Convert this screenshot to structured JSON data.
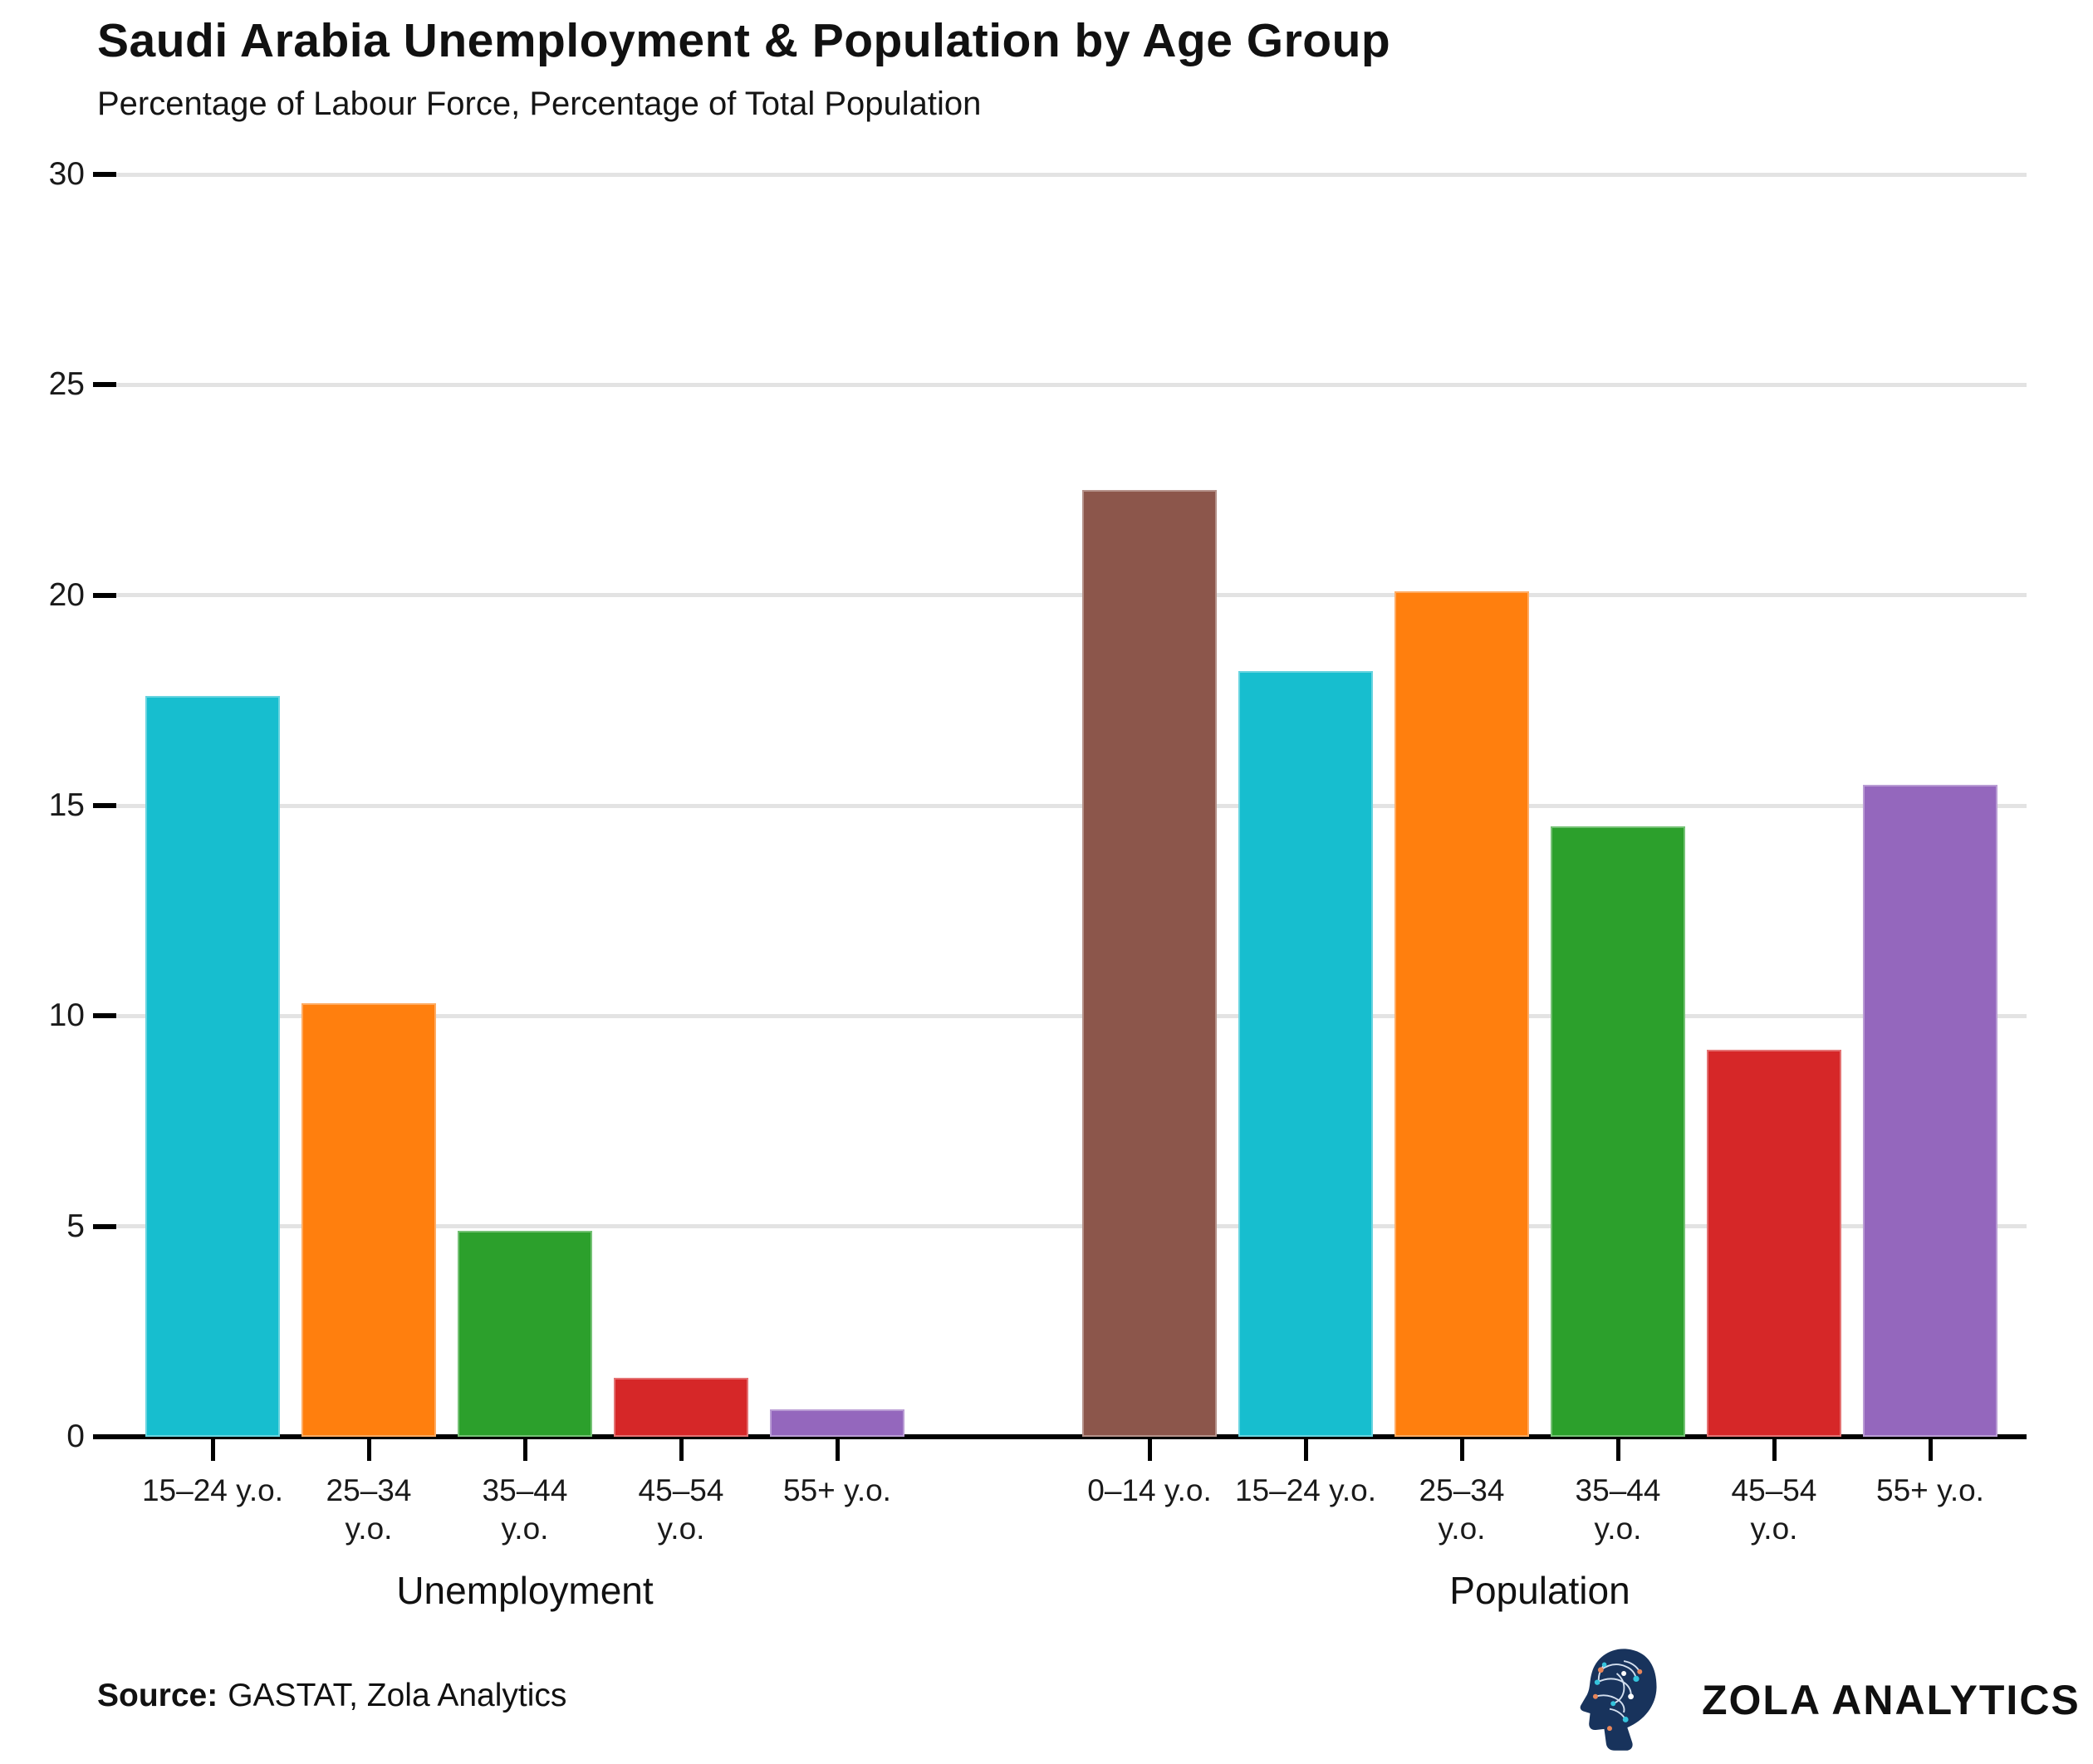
{
  "header": {
    "title": "Saudi Arabia Unemployment & Population by Age Group",
    "subtitle": "Percentage of Labour Force, Percentage of Total Population"
  },
  "source": {
    "label": "Source:",
    "text": "GASTAT, Zola Analytics"
  },
  "branding": {
    "logo_text": "ZOLA ANALYTICS",
    "logo_icon": "circuit-head-icon",
    "logo_color": "#18335c"
  },
  "chart_data": {
    "type": "bar",
    "title": "Saudi Arabia Unemployment & Population by Age Group",
    "subtitle": "Percentage of Labour Force, Percentage of Total Population",
    "xlabel": "",
    "ylabel": "",
    "ylim": [
      0,
      30
    ],
    "yticks": [
      0,
      5,
      10,
      15,
      20,
      25,
      30
    ],
    "grid": true,
    "legend": "none",
    "groups": [
      {
        "label": "Unemployment",
        "categories": [
          "15–24 y.o.",
          "25–34 y.o.",
          "35–44 y.o.",
          "45–54 y.o.",
          "55+ y.o."
        ],
        "categories_display": [
          [
            "15–24 y.o."
          ],
          [
            "25–34",
            "y.o."
          ],
          [
            "35–44",
            "y.o."
          ],
          [
            "45–54",
            "y.o."
          ],
          [
            "55+ y.o."
          ]
        ],
        "values": [
          17.6,
          10.3,
          4.9,
          1.4,
          0.65
        ],
        "colors": [
          "#17BECF",
          "#FF7F0E",
          "#2CA02C",
          "#D62728",
          "#9467BD"
        ]
      },
      {
        "label": "Population",
        "categories": [
          "0–14 y.o.",
          "15–24 y.o.",
          "25–34 y.o.",
          "35–44 y.o.",
          "45–54 y.o.",
          "55+ y.o."
        ],
        "categories_display": [
          [
            "0–14 y.o."
          ],
          [
            "15–24 y.o."
          ],
          [
            "25–34",
            "y.o."
          ],
          [
            "35–44",
            "y.o."
          ],
          [
            "45–54",
            "y.o."
          ],
          [
            "55+ y.o."
          ]
        ],
        "values": [
          22.5,
          18.2,
          20.1,
          14.5,
          9.2,
          15.5
        ],
        "colors": [
          "#8C564B",
          "#17BECF",
          "#FF7F0E",
          "#2CA02C",
          "#D62728",
          "#9467BD"
        ]
      }
    ]
  }
}
